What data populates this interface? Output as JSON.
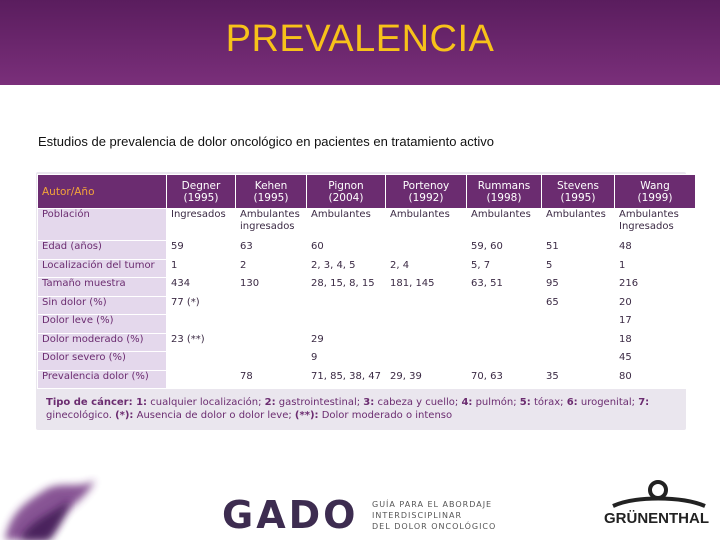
{
  "header": {
    "title": "PREVALENCIA"
  },
  "subtitle": "Estudios de prevalencia de dolor oncológico en pacientes en tratamiento activo",
  "table": {
    "corner": "Autor/Año",
    "columns": [
      {
        "name": "Degner",
        "year": "(1995)"
      },
      {
        "name": "Kehen",
        "year": "(1995)"
      },
      {
        "name": "Pignon",
        "year": "(2004)"
      },
      {
        "name": "Portenoy",
        "year": "(1992)"
      },
      {
        "name": "Rummans",
        "year": "(1998)"
      },
      {
        "name": "Stevens",
        "year": "(1995)"
      },
      {
        "name": "Wang",
        "year": "(1999)"
      }
    ],
    "rows": [
      {
        "label": "Población",
        "cells": [
          "Ingresados",
          "Ambulantes ingresados",
          "Ambulantes",
          "Ambulantes",
          "Ambulantes",
          "Ambulantes",
          "Ambulantes Ingresados"
        ]
      },
      {
        "label": "Edad (años)",
        "cells": [
          59,
          63,
          60,
          null,
          "59, 60",
          51,
          48
        ]
      },
      {
        "label": "Localización del tumor",
        "cells": [
          1,
          2,
          "2, 3, 4, 5",
          "2, 4",
          "5, 7",
          5,
          1
        ]
      },
      {
        "label": "Tamaño muestra",
        "cells": [
          434,
          130,
          "28, 15, 8, 15",
          "181, 145",
          "63, 51",
          95,
          216
        ]
      },
      {
        "label": "Sin dolor (%)",
        "cells": [
          "77 (*)",
          null,
          null,
          null,
          null,
          65,
          20
        ]
      },
      {
        "label": "Dolor leve (%)",
        "cells": [
          null,
          null,
          null,
          null,
          null,
          null,
          17
        ]
      },
      {
        "label": "Dolor moderado (%)",
        "cells": [
          "23 (**)",
          null,
          29,
          null,
          null,
          null,
          18
        ]
      },
      {
        "label": "Dolor severo (%)",
        "cells": [
          null,
          null,
          9,
          null,
          null,
          null,
          45
        ]
      },
      {
        "label": "Prevalencia dolor (%)",
        "cells": [
          null,
          78,
          "71, 85, 38, 47",
          "29, 39",
          "70, 63",
          35,
          80
        ]
      }
    ],
    "footnote": [
      {
        "text": "Tipo de cáncer: 1:",
        "bold": true
      },
      {
        "text": " cualquier localización; ",
        "bold": false
      },
      {
        "text": "2:",
        "bold": true
      },
      {
        "text": " gastrointestinal; ",
        "bold": false
      },
      {
        "text": "3:",
        "bold": true
      },
      {
        "text": " cabeza y cuello; ",
        "bold": false
      },
      {
        "text": "4:",
        "bold": true
      },
      {
        "text": " pulmón; ",
        "bold": false
      },
      {
        "text": "5:",
        "bold": true
      },
      {
        "text": " tórax; ",
        "bold": false
      },
      {
        "text": "6:",
        "bold": true
      },
      {
        "text": " urogenital; ",
        "bold": false
      },
      {
        "text": "7:",
        "bold": true
      },
      {
        "text": " ginecológico. ",
        "bold": false
      },
      {
        "text": "(*):",
        "bold": true
      },
      {
        "text": " Ausencia de dolor o dolor leve; ",
        "bold": false
      },
      {
        "text": "(**):",
        "bold": true
      },
      {
        "text": " Dolor moderado o intenso",
        "bold": false
      }
    ]
  },
  "footer": {
    "logo": "GADO",
    "guide_lines": [
      "GUÍA PARA EL ABORDAJE",
      "INTERDISCIPLINAR",
      "DEL DOLOR ONCOLÓGICO"
    ],
    "brand": "GRÜNENTHAL"
  }
}
